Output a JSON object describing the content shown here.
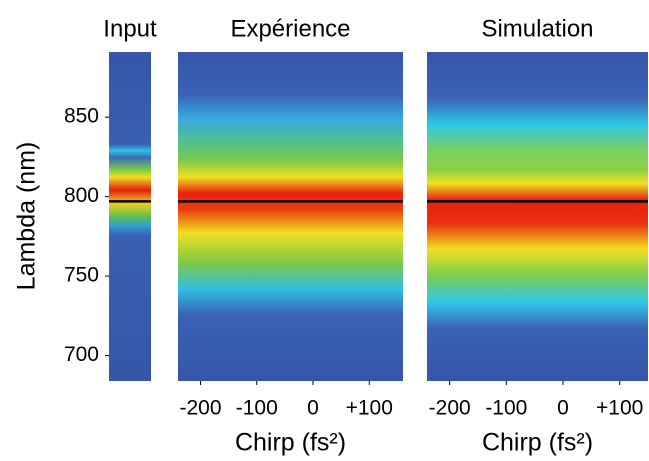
{
  "chart_data": [
    {
      "type": "heatmap",
      "title": "Input",
      "y_label": "Lambda (nm)",
      "ylim": [
        684,
        891
      ],
      "yticks": [
        700,
        750,
        800,
        850
      ],
      "hline": 797
    },
    {
      "type": "heatmap",
      "title": "Expérience",
      "x_label": "Chirp (fs²)",
      "ylim": [
        684,
        891
      ],
      "xlim": [
        -240,
        160
      ],
      "xticks": [
        -200,
        -100,
        0,
        {
          "value": 100,
          "label": "+100"
        }
      ],
      "hline": 797
    },
    {
      "type": "heatmap",
      "title": "Simulation",
      "x_label": "Chirp (fs²)",
      "ylim": [
        684,
        891
      ],
      "xlim": [
        -240,
        150
      ],
      "xticks": [
        -200,
        -100,
        0,
        {
          "value": 100,
          "label": "+100"
        }
      ],
      "hline": 797
    }
  ]
}
